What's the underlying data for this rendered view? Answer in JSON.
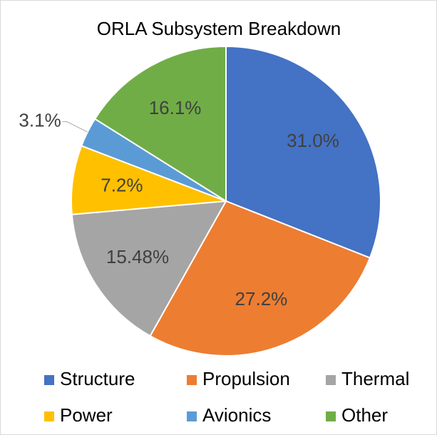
{
  "chart_data": {
    "type": "pie",
    "title": "ORLA Subsystem Breakdown",
    "categories": [
      "Structure",
      "Propulsion",
      "Thermal",
      "Power",
      "Avionics",
      "Other"
    ],
    "values": [
      31.0,
      27.2,
      15.48,
      7.2,
      3.1,
      16.1
    ],
    "value_labels": [
      "31.0%",
      "27.2%",
      "15.48%",
      "7.2%",
      "3.1%",
      "16.1%"
    ],
    "colors": [
      "#4472c4",
      "#ed7d31",
      "#a5a5a5",
      "#ffc000",
      "#5b9bd5",
      "#70ad47"
    ],
    "legend": "bottom"
  }
}
